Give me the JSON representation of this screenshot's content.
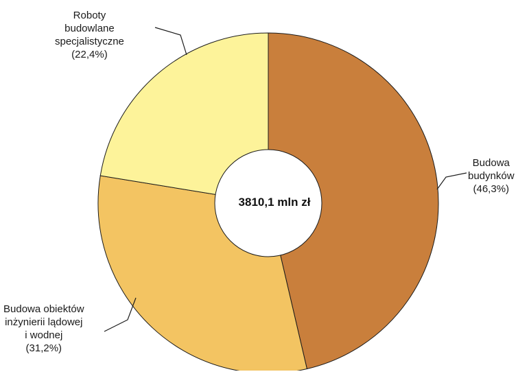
{
  "chart_data": {
    "type": "pie",
    "variant": "donut",
    "center_text": "3810,1 mln zł",
    "slices": [
      {
        "name_lines": [
          "Budowa",
          "budynków"
        ],
        "pct_label": "(46,3%)",
        "value": 46.3,
        "color": "#c97f3c"
      },
      {
        "name_lines": [
          "Budowa obiektów",
          "inżynierii lądowej",
          "i wodnej"
        ],
        "pct_label": "(31,2%)",
        "value": 31.2,
        "color": "#f3c462"
      },
      {
        "name_lines": [
          "Roboty",
          "budowlane",
          "specjalistyczne"
        ],
        "pct_label": "(22,4%)",
        "value": 22.4,
        "color": "#fdf39a"
      }
    ],
    "start_angle_deg": 0,
    "direction": "clockwise",
    "legend": "none"
  }
}
